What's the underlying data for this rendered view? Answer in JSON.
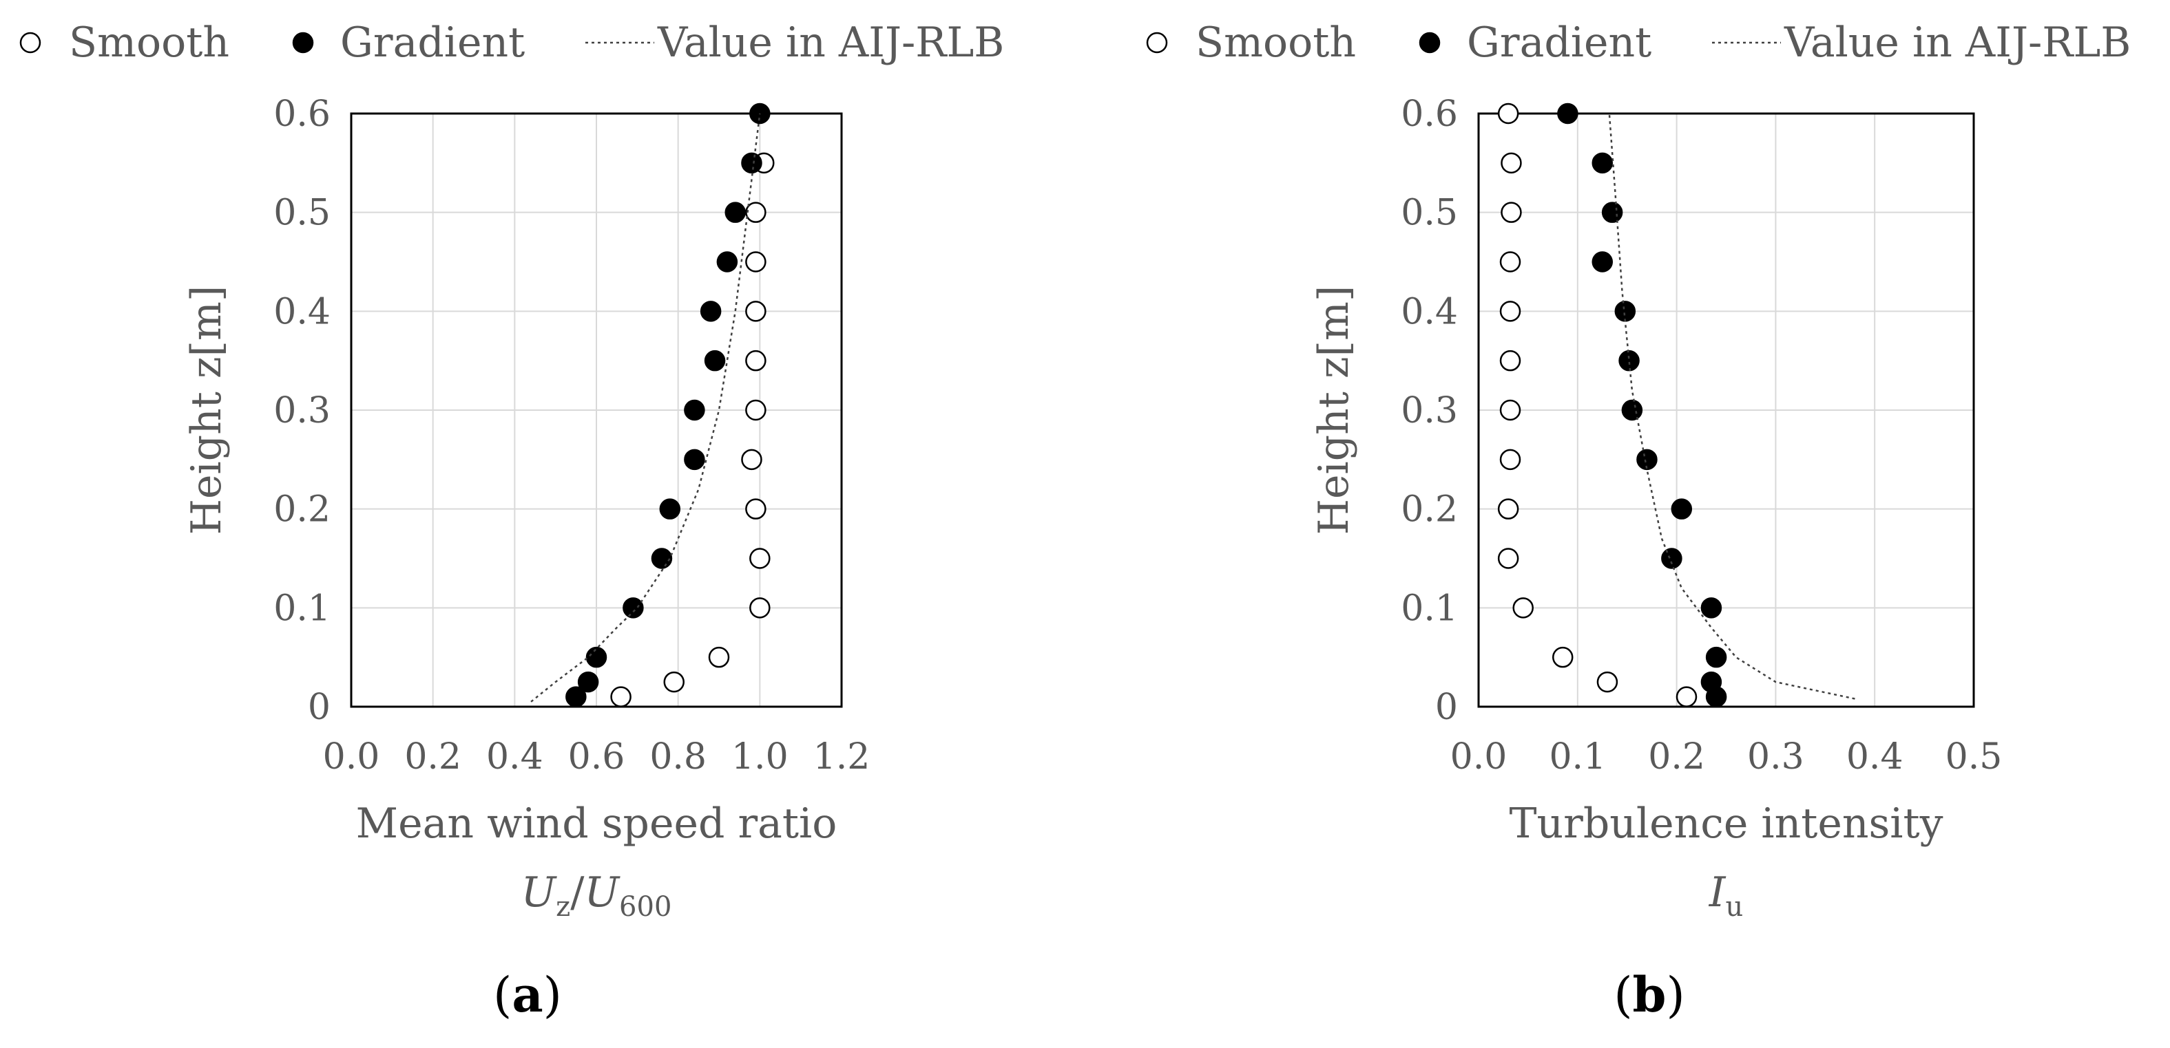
{
  "chart_data": [
    {
      "type": "scatter",
      "panel_label": "a",
      "legend": {
        "placement": "top",
        "items": [
          "Smooth",
          "Gradient",
          "Value in AIJ-RLB"
        ]
      },
      "xlabel": "Mean wind speed ratio",
      "xlabel_math": {
        "base": "U",
        "sub": "z",
        "base2": "U",
        "sub2": "600"
      },
      "ylabel": "Height z[m]",
      "xlim": [
        0,
        1.2
      ],
      "ylim": [
        0,
        0.6
      ],
      "xticks": [
        "0.0",
        "0.2",
        "0.4",
        "0.6",
        "0.8",
        "1.0",
        "1.2"
      ],
      "yticks": [
        "0",
        "0.1",
        "0.2",
        "0.3",
        "0.4",
        "0.5",
        "0.6"
      ],
      "grid": true,
      "series": [
        {
          "name": "Smooth",
          "marker": "open-circle",
          "x": [
            0.66,
            0.79,
            0.9,
            1.0,
            1.0,
            0.99,
            0.98,
            0.99,
            0.99,
            0.99,
            0.99,
            0.99,
            1.01
          ],
          "y": [
            0.01,
            0.025,
            0.05,
            0.1,
            0.15,
            0.2,
            0.25,
            0.3,
            0.35,
            0.4,
            0.45,
            0.5,
            0.55
          ]
        },
        {
          "name": "Gradient",
          "marker": "filled-circle",
          "x": [
            0.55,
            0.58,
            0.6,
            0.69,
            0.76,
            0.78,
            0.84,
            0.84,
            0.89,
            0.88,
            0.92,
            0.94,
            0.98,
            1.0
          ],
          "y": [
            0.01,
            0.025,
            0.05,
            0.1,
            0.15,
            0.2,
            0.25,
            0.3,
            0.35,
            0.4,
            0.45,
            0.5,
            0.55,
            0.6
          ]
        },
        {
          "name": "Value in AIJ-RLB",
          "marker": "dotted-line",
          "x": [
            0.44,
            0.5,
            0.58,
            0.65,
            0.7,
            0.78,
            0.85,
            0.9,
            0.94,
            0.97,
            1.0
          ],
          "y": [
            0.005,
            0.025,
            0.05,
            0.08,
            0.1,
            0.15,
            0.22,
            0.3,
            0.4,
            0.5,
            0.6
          ]
        }
      ]
    },
    {
      "type": "scatter",
      "panel_label": "b",
      "legend": {
        "placement": "top",
        "items": [
          "Smooth",
          "Gradient",
          "Value in AIJ-RLB"
        ]
      },
      "xlabel": "Turbulence intensity",
      "xlabel_math": {
        "base": "I",
        "sub": "u"
      },
      "ylabel": "Height z[m]",
      "xlim": [
        0,
        0.5
      ],
      "ylim": [
        0,
        0.6
      ],
      "xticks": [
        "0.0",
        "0.1",
        "0.2",
        "0.3",
        "0.4",
        "0.5"
      ],
      "yticks": [
        "0",
        "0.1",
        "0.2",
        "0.3",
        "0.4",
        "0.5",
        "0.6"
      ],
      "grid": true,
      "series": [
        {
          "name": "Smooth",
          "marker": "open-circle",
          "x": [
            0.21,
            0.13,
            0.085,
            0.045,
            0.03,
            0.03,
            0.032,
            0.032,
            0.032,
            0.032,
            0.032,
            0.033,
            0.033,
            0.03
          ],
          "y": [
            0.01,
            0.025,
            0.05,
            0.1,
            0.15,
            0.2,
            0.25,
            0.3,
            0.35,
            0.4,
            0.45,
            0.5,
            0.55,
            0.6
          ]
        },
        {
          "name": "Gradient",
          "marker": "filled-circle",
          "x": [
            0.24,
            0.235,
            0.24,
            0.235,
            0.195,
            0.205,
            0.17,
            0.155,
            0.152,
            0.148,
            0.125,
            0.135,
            0.125,
            0.09
          ],
          "y": [
            0.01,
            0.025,
            0.05,
            0.1,
            0.15,
            0.2,
            0.25,
            0.3,
            0.35,
            0.4,
            0.45,
            0.5,
            0.55,
            0.6
          ]
        },
        {
          "name": "Value in AIJ-RLB",
          "marker": "dotted-line",
          "x": [
            0.38,
            0.3,
            0.26,
            0.235,
            0.205,
            0.185,
            0.17,
            0.155,
            0.145,
            0.138,
            0.132
          ],
          "y": [
            0.008,
            0.025,
            0.05,
            0.08,
            0.12,
            0.17,
            0.24,
            0.32,
            0.42,
            0.52,
            0.6
          ]
        }
      ]
    }
  ]
}
